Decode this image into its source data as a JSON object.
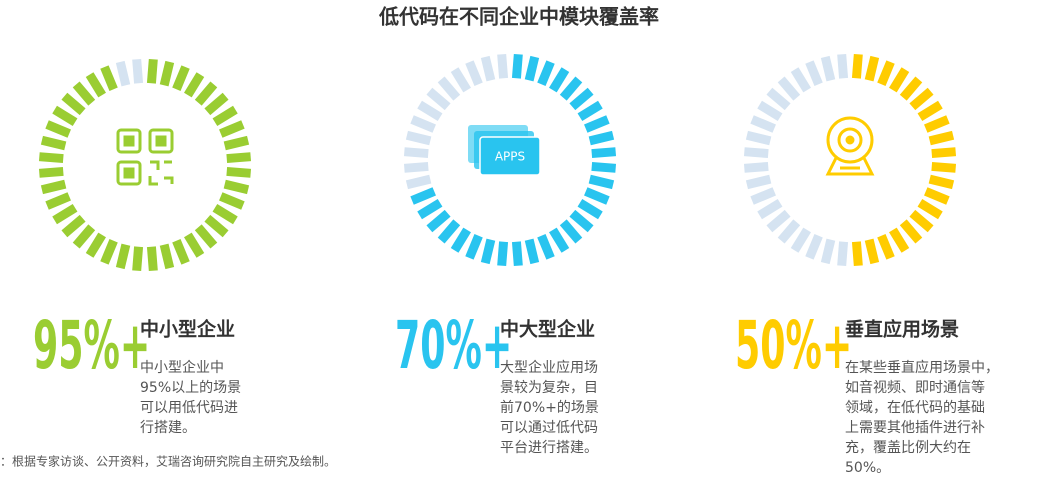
{
  "title": "低代码在不同企业中模块覆盖率",
  "source": "：根据专家访谈、公开资料，艾瑞咨询研究院自主研究及绘制。",
  "chart_data": [
    {
      "type": "gauge",
      "title": "中小型企业",
      "values": [
        95
      ],
      "value_labels": [
        "95%+"
      ],
      "color": "#9acd32",
      "text": [
        "中小型企业中",
        "95%以上的场景",
        "可以用低代码进",
        "行搭建。"
      ]
    },
    {
      "type": "gauge",
      "title": "中大型企业",
      "values": [
        70
      ],
      "value_labels": [
        "70%+"
      ],
      "color": "#29c4ef",
      "text": [
        "大型企业应用场",
        "景较为复杂，目",
        "前70%+的场景",
        "可以通过低代码",
        "平台进行搭建。"
      ]
    },
    {
      "type": "gauge",
      "title": "垂直应用场景",
      "values": [
        50
      ],
      "value_labels": [
        "50%+"
      ],
      "color": "#ffcc00",
      "text": [
        "在某些垂直应用场景中，",
        "如音视频、即时通信等",
        "领域，在低代码的基础",
        "上需要其他插件进行补",
        "充，覆盖比例大约在",
        "50%。"
      ]
    }
  ]
}
